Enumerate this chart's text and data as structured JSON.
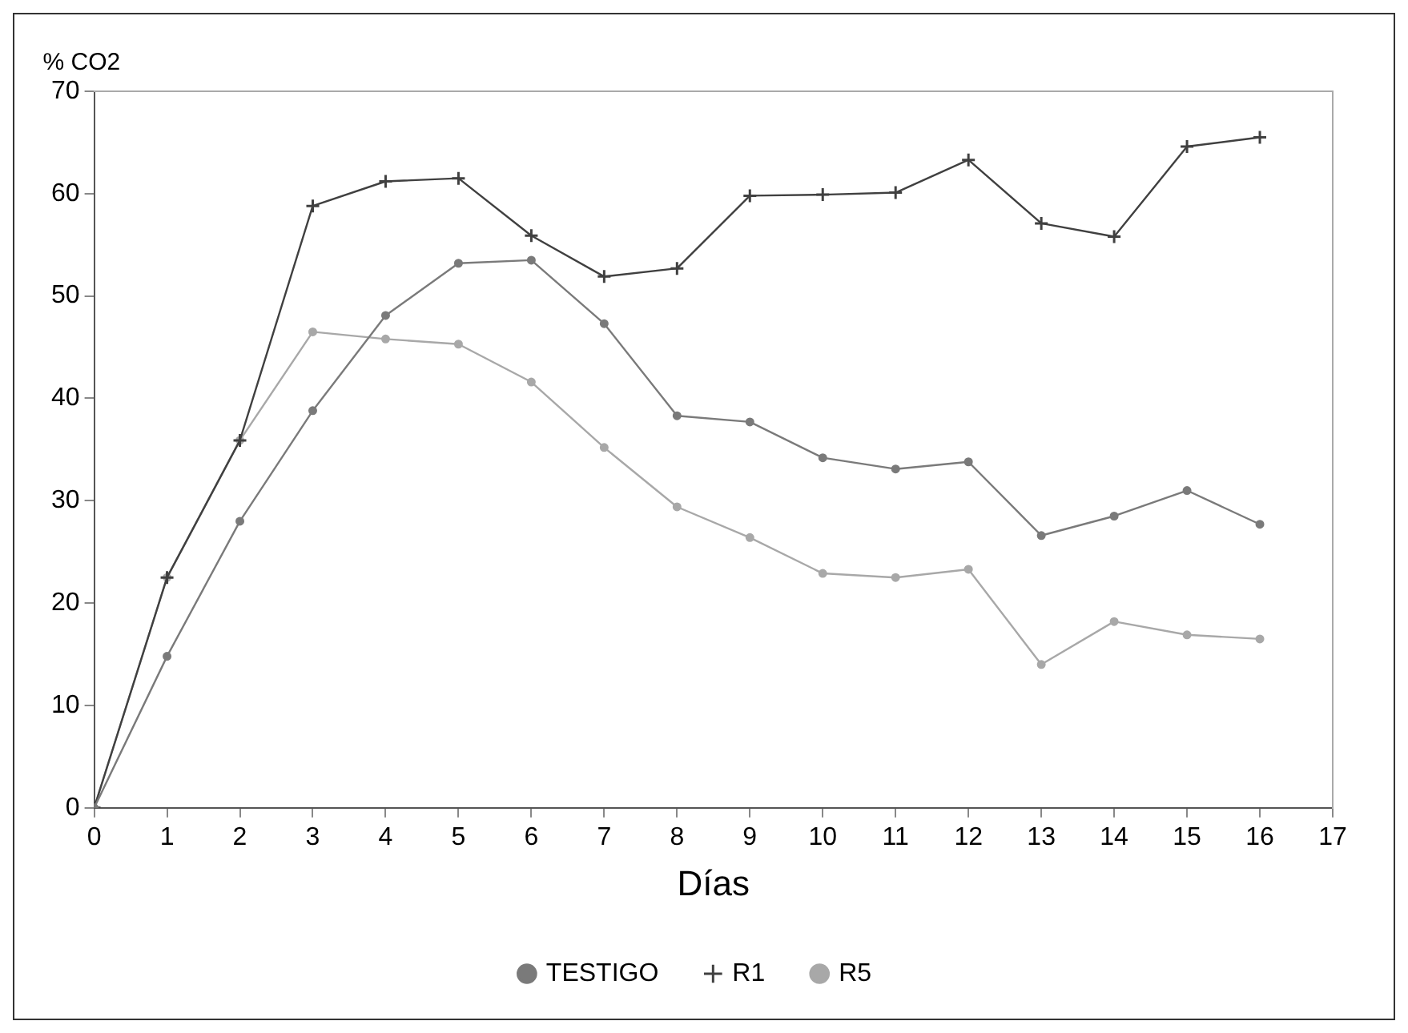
{
  "chart_data": {
    "type": "line",
    "xlabel": "Días",
    "ylabel": "% CO2",
    "x": [
      0,
      1,
      2,
      3,
      4,
      5,
      6,
      7,
      8,
      9,
      10,
      11,
      12,
      13,
      14,
      15,
      16
    ],
    "xlim": [
      0,
      17
    ],
    "xticks": [
      0,
      1,
      2,
      3,
      4,
      5,
      6,
      7,
      8,
      9,
      10,
      11,
      12,
      13,
      14,
      15,
      16,
      17
    ],
    "ylim": [
      0,
      70
    ],
    "yticks": [
      0,
      10,
      20,
      30,
      40,
      50,
      60,
      70
    ],
    "grid": false,
    "legend": "bottom",
    "line_style": "solid",
    "series": [
      {
        "name": "TESTIGO",
        "color": "#7a7a7a",
        "marker": "circle",
        "values": [
          0,
          14.8,
          28,
          38.8,
          48.1,
          53.2,
          53.5,
          47.3,
          38.3,
          37.7,
          34.2,
          33.1,
          33.8,
          26.6,
          28.5,
          31,
          27.7
        ]
      },
      {
        "name": "R1",
        "color": "#404040",
        "marker": "cross",
        "values": [
          0,
          22.5,
          35.9,
          58.8,
          61.2,
          61.5,
          55.9,
          51.9,
          52.7,
          59.8,
          59.9,
          60.1,
          63.3,
          57.1,
          55.8,
          64.6,
          65.5
        ]
      },
      {
        "name": "R5",
        "color": "#a8a8a8",
        "marker": "circle",
        "values": [
          0,
          22.5,
          35.9,
          46.5,
          45.8,
          45.3,
          41.6,
          35.2,
          29.4,
          26.4,
          22.9,
          22.5,
          23.3,
          14,
          18.2,
          16.9,
          16.5
        ]
      }
    ]
  }
}
